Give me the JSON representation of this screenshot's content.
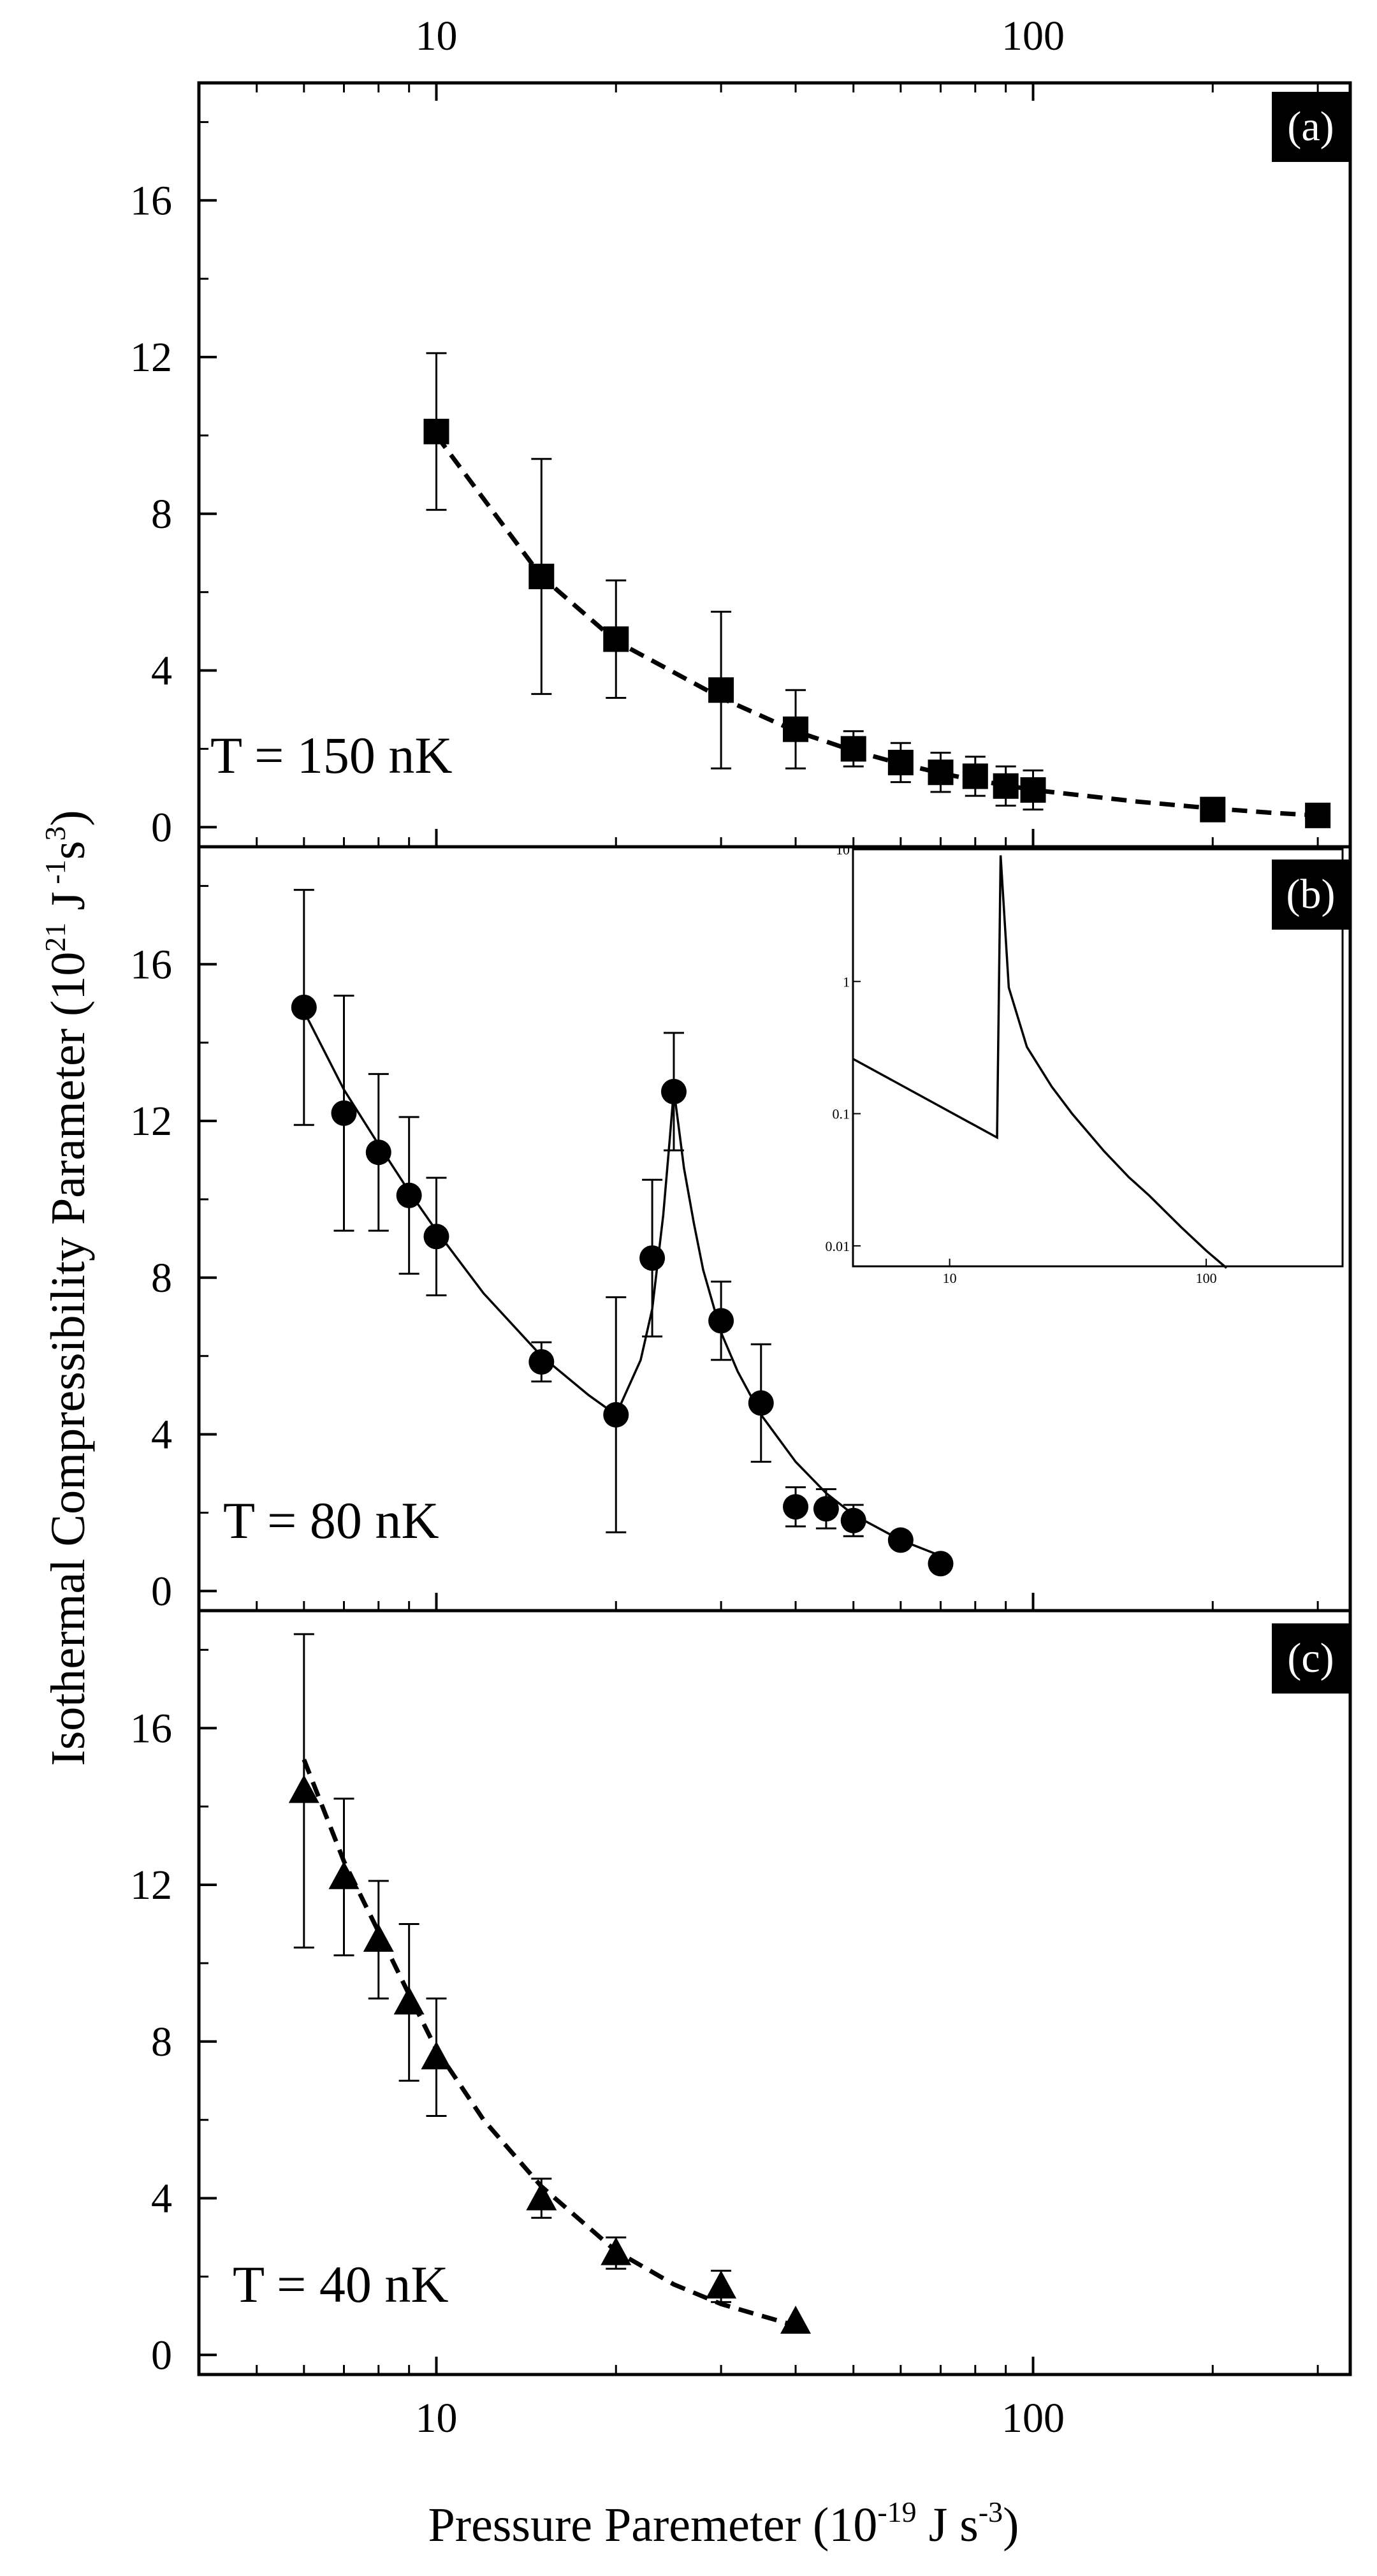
{
  "chart_data": {
    "type": "scatter",
    "title": "",
    "xlabel": {
      "main": "Pressure Paremeter (10",
      "exp1": "-19",
      "mid": " J s",
      "exp2": "-3",
      "end": ")"
    },
    "ylabel": {
      "main": "Isothermal Compressibility Parameter (10",
      "exp1": "21",
      "mid": " J",
      "exp2": " -1",
      "mid2": "s",
      "exp3": "3",
      "end": ")"
    },
    "x_scale": "log",
    "xlim": [
      4,
      340
    ],
    "x_ticks": [
      10,
      100
    ],
    "x_tick_labels": [
      "10",
      "100"
    ],
    "ylim": [
      -0.5,
      19
    ],
    "y_ticks": [
      0,
      4,
      8,
      12,
      16
    ],
    "y_tick_labels": [
      "0",
      "4",
      "8",
      "12",
      "16"
    ],
    "panels": [
      {
        "tag": "(a)",
        "temperature_label": "T = 150 nK",
        "marker": "square",
        "fit_style": "dashed",
        "x": [
          10,
          15,
          20,
          30,
          40,
          50,
          60,
          70,
          80,
          90,
          100,
          200,
          300
        ],
        "y": [
          10.1,
          6.4,
          4.8,
          3.5,
          2.5,
          2.0,
          1.65,
          1.4,
          1.3,
          1.05,
          0.95,
          0.45,
          0.3
        ],
        "err": [
          2.0,
          3.0,
          1.5,
          2.0,
          1.0,
          0.45,
          0.5,
          0.5,
          0.5,
          0.5,
          0.5,
          0,
          0
        ],
        "fit": {
          "x": [
            10,
            15,
            20,
            30,
            40,
            50,
            60,
            70,
            80,
            90,
            100,
            150,
            200,
            250,
            300
          ],
          "y": [
            10.0,
            6.4,
            4.75,
            3.3,
            2.45,
            1.95,
            1.62,
            1.38,
            1.2,
            1.07,
            0.95,
            0.65,
            0.48,
            0.37,
            0.3
          ]
        }
      },
      {
        "tag": "(b)",
        "temperature_label": "T = 80 nK",
        "marker": "circle",
        "fit_style": "solid",
        "x": [
          6,
          7,
          8,
          9,
          10,
          15,
          20,
          23,
          25,
          30,
          35,
          40,
          45,
          50,
          60,
          70
        ],
        "y": [
          14.9,
          12.2,
          11.2,
          10.1,
          9.05,
          5.85,
          4.5,
          8.5,
          12.75,
          6.9,
          4.8,
          2.15,
          2.1,
          1.8,
          1.3,
          0.7
        ],
        "err": [
          3.0,
          3.0,
          2.0,
          2.0,
          1.5,
          0.5,
          3.0,
          2.0,
          1.5,
          1.0,
          1.5,
          0.5,
          0.5,
          0.4,
          0,
          0
        ],
        "fit": {
          "x": [
            6,
            7,
            8,
            9,
            10,
            12,
            15,
            18,
            20,
            22,
            23,
            24,
            24.6,
            25,
            25.5,
            26,
            27,
            28,
            30,
            32,
            35,
            40,
            45,
            50,
            60,
            70
          ],
          "y": [
            14.8,
            12.8,
            11.4,
            10.2,
            9.2,
            7.6,
            6.0,
            5.0,
            4.5,
            5.9,
            7.2,
            9.6,
            11.5,
            12.8,
            11.8,
            10.8,
            9.4,
            8.2,
            6.6,
            5.6,
            4.5,
            3.3,
            2.5,
            1.95,
            1.3,
            0.9
          ]
        }
      },
      {
        "tag": "(c)",
        "temperature_label": "T = 40 nK",
        "marker": "triangle",
        "fit_style": "dashed",
        "x": [
          6,
          7,
          8,
          9,
          10,
          15,
          20,
          30,
          40
        ],
        "y": [
          14.4,
          12.2,
          10.6,
          9.0,
          7.6,
          4.0,
          2.6,
          1.75,
          0.85
        ],
        "err": [
          4.0,
          2.0,
          1.5,
          2.0,
          1.5,
          0.5,
          0.4,
          0.4,
          0
        ],
        "fit": {
          "x": [
            6,
            7,
            8,
            9,
            10,
            12,
            15,
            20,
            25,
            30,
            35,
            40
          ],
          "y": [
            15.2,
            12.6,
            10.8,
            9.2,
            7.8,
            6.0,
            4.3,
            2.65,
            1.8,
            1.3,
            1.0,
            0.75
          ]
        }
      }
    ],
    "inset": {
      "panel": "(b)",
      "x_scale": "log",
      "y_scale": "log",
      "xlim": [
        4.2,
        340
      ],
      "ylim": [
        0.007,
        10
      ],
      "x_ticks": [
        10,
        100
      ],
      "x_tick_labels": [
        "10",
        "100"
      ],
      "y_ticks": [
        0.01,
        0.1,
        1,
        10
      ],
      "y_tick_labels": [
        "0.01",
        "0.1",
        "1",
        "10"
      ],
      "curve": {
        "x": [
          4.2,
          15.3,
          15.8,
          17,
          20,
          25,
          30,
          40,
          50,
          60,
          80,
          100,
          120
        ],
        "y": [
          0.26,
          0.066,
          9.0,
          0.9,
          0.32,
          0.16,
          0.1,
          0.052,
          0.033,
          0.024,
          0.0138,
          0.0092,
          0.0068
        ]
      }
    }
  }
}
